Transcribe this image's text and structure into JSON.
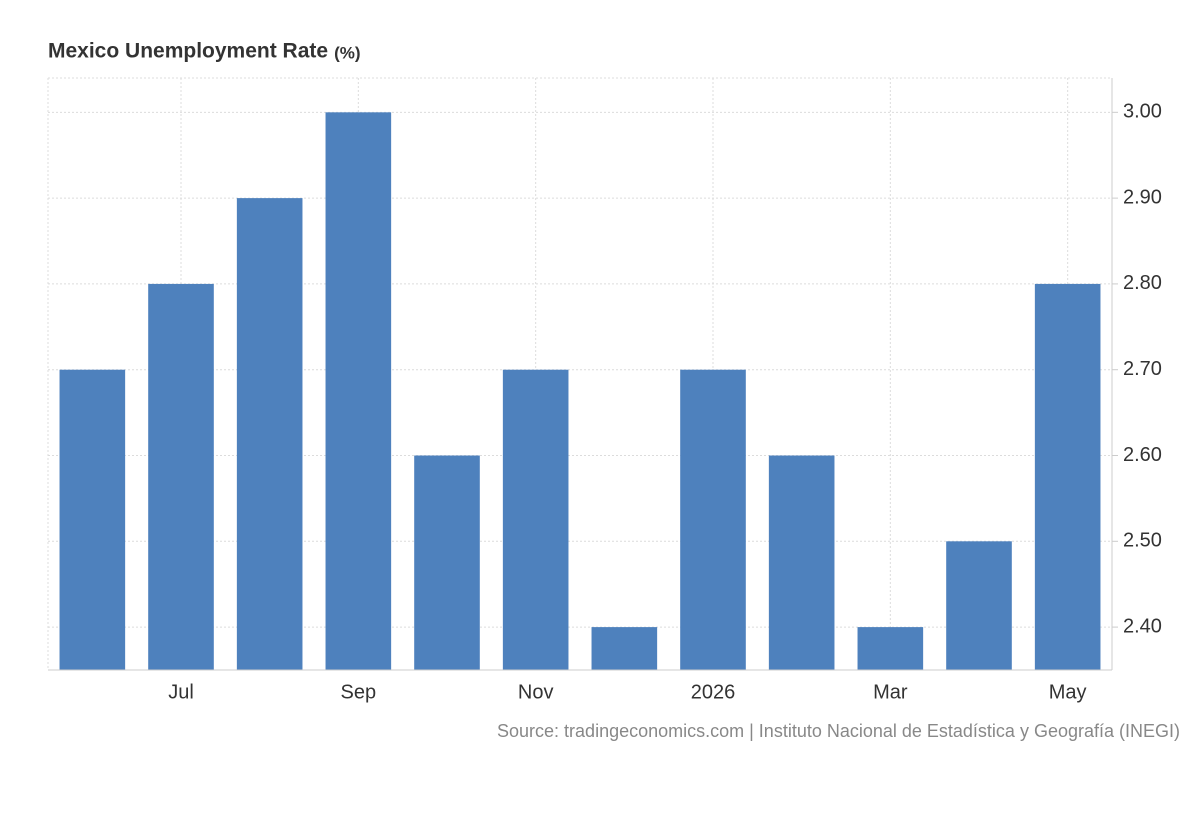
{
  "chart_data": {
    "type": "bar",
    "title": "Mexico Unemployment Rate",
    "unit": "(%)",
    "source": "Source: tradingeconomics.com | Instituto Nacional de Estadística y Geografía (INEGI)",
    "categories": [
      null,
      "Jul",
      null,
      "Sep",
      null,
      "Nov",
      null,
      "2026",
      null,
      "Mar",
      null,
      "May"
    ],
    "values": [
      2.7,
      2.8,
      2.9,
      3.0,
      2.6,
      2.7,
      2.4,
      2.7,
      2.6,
      2.4,
      2.5,
      2.8
    ],
    "color": "#4e81bd",
    "ylim": [
      2.35,
      3.04
    ],
    "yticks": [
      {
        "value": 2.4,
        "label": "2.40"
      },
      {
        "value": 2.5,
        "label": "2.50"
      },
      {
        "value": 2.6,
        "label": "2.60"
      },
      {
        "value": 2.7,
        "label": "2.70"
      },
      {
        "value": 2.8,
        "label": "2.80"
      },
      {
        "value": 2.9,
        "label": "2.90"
      },
      {
        "value": 3.0,
        "label": "3.00"
      }
    ],
    "grid": true
  }
}
